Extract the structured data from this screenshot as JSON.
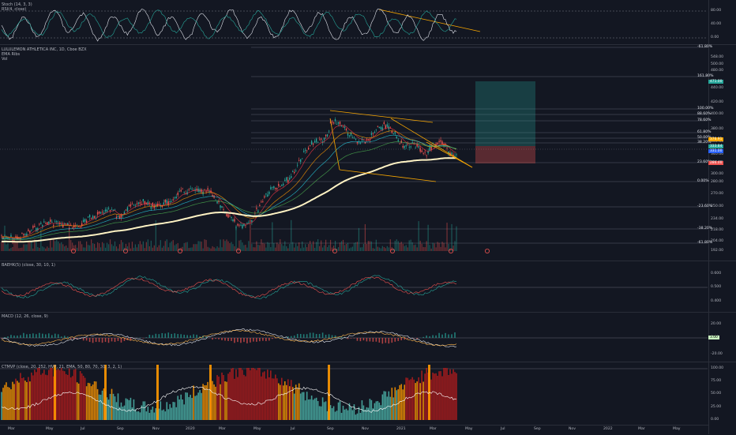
{
  "legends": {
    "stoch": [
      "Stoch (14, 3, 3)",
      "RSI(4, close)"
    ],
    "main": [
      "LULULEMON ATHLETICA INC, 1D, Cboe BZX",
      "EMA Ribs",
      "Vol"
    ],
    "bbw": "BAEHK(5) (close, 30, 10, 1)",
    "macd": "MACD (12, 26, close, 9)",
    "ctm": "CTMVP (close, 20, 252, HVP, 21, EMA, 50, 80, 70, 30, 3, 2, 1)"
  },
  "stoch_axis": [
    "80.00",
    "40.00",
    "0.00"
  ],
  "price_axis": [
    "548.00",
    "500.00",
    "480.00",
    "440.00",
    "420.00",
    "400.00",
    "380.00",
    "360.00",
    "340.00",
    "320.00",
    "300.00",
    "280.00",
    "270.00",
    "250.00",
    "234.00",
    "218.00",
    "204.00",
    "192.00",
    "181.00"
  ],
  "bbw_axis": [
    "0.600",
    "0.500",
    "0.400"
  ],
  "macd_axis": [
    "20.00",
    "0.00",
    "-20.00"
  ],
  "ctm_axis": [
    "100.00",
    "75.00",
    "50.00",
    "25.00",
    "0.00"
  ],
  "fib_labels": [
    "-61.80%",
    "161.80%",
    "100.00%",
    "88.60%",
    "78.60%",
    "61.80%",
    "50.00%",
    "38.20%",
    "23.60%",
    "0.00%",
    "-23.60%",
    "-38.20%",
    "-61.80%"
  ],
  "price_tags": [
    {
      "label": "471.00",
      "color": "#26a69a"
    },
    {
      "label": "376.91",
      "color": "#f7a600"
    },
    {
      "label": "333.84",
      "color": "#26a69a"
    },
    {
      "label": "331.00",
      "color": "#2962ff"
    },
    {
      "label": "286.00",
      "color": "#ef5350"
    }
  ],
  "macd_tag": "3.00",
  "x_axis": [
    "Mar",
    "May",
    "Jul",
    "Sep",
    "Nov",
    "2020",
    "Mar",
    "May",
    "Jul",
    "Sep",
    "Nov",
    "2021",
    "Mar",
    "May",
    "Jul",
    "Sep",
    "Nov",
    "2022",
    "Mar",
    "May"
  ],
  "colors": {
    "bg": "#131722",
    "up": "#26a69a",
    "down": "#ef5350",
    "ema200": "#fff3c4",
    "trend": "#f7a600",
    "target": "#26a69a",
    "stop": "#ef5350"
  }
}
